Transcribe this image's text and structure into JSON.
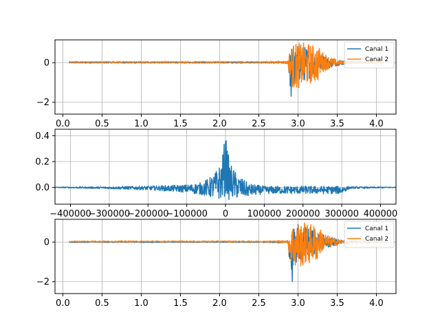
{
  "colors": {
    "series_1": "#1f77b4",
    "series_2": "#ff7f0e",
    "grid": "#b0b0b0",
    "axes": "#000000",
    "background": "#ffffff"
  },
  "chart_data": [
    {
      "type": "line",
      "title": "",
      "xlabel": "",
      "ylabel": "",
      "xlim": [
        -0.1,
        4.25
      ],
      "ylim": [
        -2.6,
        1.15
      ],
      "xticks": [
        0.0,
        0.5,
        1.0,
        1.5,
        2.0,
        2.5,
        3.0,
        3.5,
        4.0
      ],
      "xtick_labels": [
        "0.0",
        "0.5",
        "1.0",
        "1.5",
        "2.0",
        "2.5",
        "3.0",
        "3.5",
        "4.0"
      ],
      "yticks": [
        0,
        -2
      ],
      "ytick_labels": [
        "0",
        "−2"
      ],
      "grid": true,
      "legend": "top-right",
      "series": [
        {
          "name": "Canal 1",
          "color": "#1f77b4",
          "x": [
            0.08,
            2.5,
            2.87,
            2.9,
            2.92,
            2.94,
            2.96,
            3.0,
            3.1,
            3.2,
            3.3,
            3.5,
            3.7,
            4.0,
            4.1
          ],
          "y_low": [
            -0.02,
            -0.02,
            -0.05,
            -1.3,
            -2.4,
            -1.8,
            -1.2,
            -1.0,
            -0.9,
            -0.7,
            -0.4,
            -0.15,
            -0.06,
            -0.02,
            -0.02
          ],
          "y_high": [
            0.02,
            0.02,
            0.05,
            0.6,
            0.9,
            0.7,
            0.6,
            0.9,
            0.8,
            0.7,
            0.4,
            0.15,
            0.06,
            0.02,
            0.02
          ]
        },
        {
          "name": "Canal 2",
          "color": "#ff7f0e",
          "x": [
            0.08,
            2.5,
            2.87,
            2.9,
            2.95,
            3.0,
            3.1,
            3.2,
            3.25,
            3.3,
            3.4,
            3.5,
            3.6,
            3.8,
            4.1
          ],
          "y_low": [
            0.0,
            0.0,
            -0.03,
            -1.0,
            -1.4,
            -1.3,
            -1.2,
            -1.0,
            -1.0,
            -0.5,
            -0.3,
            -0.15,
            -0.05,
            -0.02,
            -0.01
          ],
          "y_high": [
            0.06,
            0.06,
            0.08,
            0.8,
            1.0,
            1.0,
            1.0,
            0.9,
            0.9,
            0.6,
            0.3,
            0.15,
            0.06,
            0.03,
            0.02
          ]
        }
      ]
    },
    {
      "type": "line",
      "title": "",
      "xlabel": "",
      "ylabel": "",
      "xlim": [
        -440000,
        440000
      ],
      "ylim": [
        -0.13,
        0.45
      ],
      "xticks": [
        -400000,
        -300000,
        -200000,
        -100000,
        0,
        100000,
        200000,
        300000,
        400000
      ],
      "xtick_labels": [
        "−400000",
        "−300000",
        "−200000",
        "−100000",
        "0",
        "100000",
        "200000",
        "300000",
        "400000"
      ],
      "yticks": [
        0.0,
        0.2,
        0.4
      ],
      "ytick_labels": [
        "0.0",
        "0.2",
        "0.4"
      ],
      "grid": true,
      "series": [
        {
          "name": "",
          "color": "#1f77b4",
          "x": [
            -440000,
            -320000,
            -200000,
            -100000,
            -60000,
            -30000,
            -10000,
            0,
            10000,
            30000,
            60000,
            100000,
            200000,
            300000,
            320000,
            440000
          ],
          "y_low": [
            -0.003,
            -0.01,
            -0.02,
            -0.04,
            -0.06,
            -0.09,
            -0.1,
            -0.06,
            -0.1,
            -0.09,
            -0.07,
            -0.05,
            -0.05,
            -0.05,
            -0.01,
            -0.003
          ],
          "y_high": [
            0.003,
            0.005,
            0.01,
            0.02,
            0.04,
            0.1,
            0.2,
            0.42,
            0.2,
            0.1,
            0.03,
            0.01,
            0.01,
            0.01,
            0.005,
            0.003
          ]
        }
      ]
    },
    {
      "type": "line",
      "title": "",
      "xlabel": "",
      "ylabel": "",
      "xlim": [
        -0.1,
        4.25
      ],
      "ylim": [
        -2.6,
        1.15
      ],
      "xticks": [
        0.0,
        0.5,
        1.0,
        1.5,
        2.0,
        2.5,
        3.0,
        3.5,
        4.0
      ],
      "xtick_labels": [
        "0.0",
        "0.5",
        "1.0",
        "1.5",
        "2.0",
        "2.5",
        "3.0",
        "3.5",
        "4.0"
      ],
      "yticks": [
        0,
        -2
      ],
      "ytick_labels": [
        "0",
        "−2"
      ],
      "grid": true,
      "legend": "top-right",
      "series": [
        {
          "name": "Canal 1",
          "color": "#1f77b4",
          "x": [
            0.08,
            2.5,
            2.87,
            2.9,
            2.92,
            2.94,
            2.96,
            3.0,
            3.1,
            3.2,
            3.3,
            3.5,
            3.7,
            4.0,
            4.1
          ],
          "y_low": [
            -0.02,
            -0.02,
            -0.05,
            -1.3,
            -2.4,
            -1.8,
            -1.2,
            -1.0,
            -0.9,
            -0.7,
            -0.4,
            -0.15,
            -0.06,
            -0.02,
            -0.02
          ],
          "y_high": [
            0.02,
            0.02,
            0.05,
            0.6,
            0.9,
            0.7,
            0.6,
            0.9,
            0.8,
            0.7,
            0.4,
            0.15,
            0.06,
            0.02,
            0.02
          ]
        },
        {
          "name": "Canal 2",
          "color": "#ff7f0e",
          "x": [
            0.08,
            2.5,
            2.87,
            2.9,
            2.95,
            3.0,
            3.1,
            3.2,
            3.25,
            3.3,
            3.4,
            3.5,
            3.6,
            3.8,
            4.1
          ],
          "y_low": [
            0.0,
            0.0,
            -0.03,
            -1.0,
            -1.4,
            -1.3,
            -1.2,
            -1.0,
            -1.0,
            -0.5,
            -0.3,
            -0.15,
            -0.05,
            -0.02,
            -0.01
          ],
          "y_high": [
            0.06,
            0.06,
            0.08,
            0.8,
            1.0,
            1.0,
            1.0,
            0.9,
            0.9,
            0.6,
            0.3,
            0.15,
            0.06,
            0.03,
            0.02
          ]
        }
      ]
    }
  ]
}
